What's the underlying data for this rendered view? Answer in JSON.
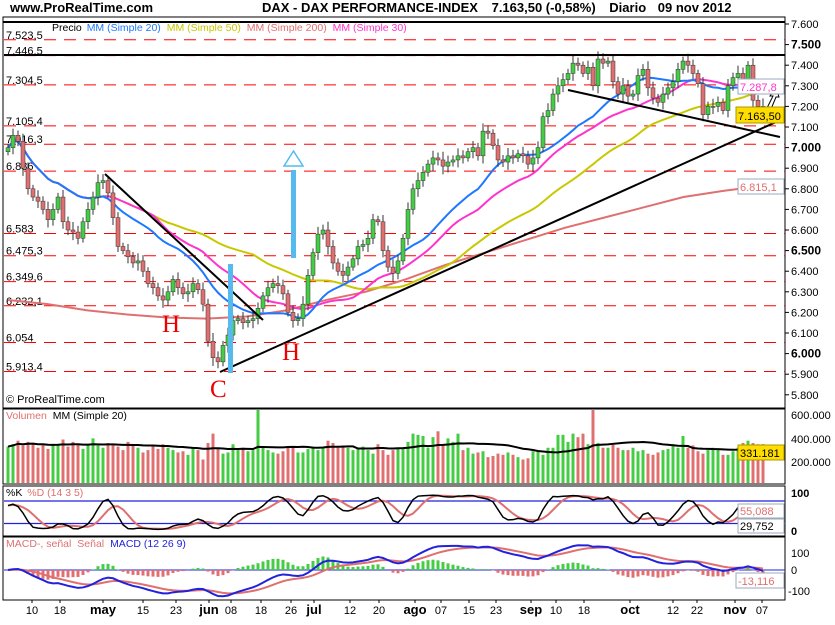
{
  "header": {
    "site": "www.ProRealTime.com",
    "title": "DAX - DAX PERFORMANCE-INDEX",
    "last": "7.163,50 (-0,58%)",
    "period": "Diario",
    "date": "09 nov 2012"
  },
  "legend": {
    "price": "Precio",
    "ma20": "MM (Simple 20)",
    "ma50": "MM (Simple 50)",
    "ma200": "MM (Simple 200)",
    "ma30": "MM (Simple 30)"
  },
  "watermark": "© ProRealTime.com",
  "annotations": {
    "h_left": "H",
    "h_right": "H",
    "c_bottom": "C"
  },
  "colors": {
    "up": "#44cc44",
    "down": "#e07070",
    "ma20": "#1e78ff",
    "ma50": "#c8c800",
    "ma200": "#e07070",
    "ma30": "#ff33cc",
    "level": "#ff0000",
    "arrow": "#55bbee",
    "annotation": "#ee0000",
    "last_tag": "#ffdd00"
  },
  "chart_data": [
    {
      "type": "candlestick",
      "title": "DAX - DAX PERFORMANCE-INDEX",
      "closes": [
        7000,
        7060,
        7030,
        6900,
        6800,
        6760,
        6740,
        6700,
        6650,
        6700,
        6760,
        6640,
        6600,
        6590,
        6560,
        6640,
        6700,
        6760,
        6830,
        6840,
        6780,
        6660,
        6520,
        6500,
        6470,
        6440,
        6450,
        6400,
        6340,
        6320,
        6280,
        6260,
        6300,
        6360,
        6320,
        6290,
        6300,
        6340,
        6310,
        6240,
        6060,
        5980,
        5960,
        6040,
        6090,
        6160,
        6170,
        6150,
        6160,
        6170,
        6220,
        6280,
        6320,
        6340,
        6330,
        6290,
        6200,
        6160,
        6170,
        6240,
        6380,
        6490,
        6580,
        6600,
        6520,
        6440,
        6400,
        6380,
        6420,
        6460,
        6520,
        6530,
        6560,
        6650,
        6640,
        6500,
        6420,
        6390,
        6450,
        6560,
        6700,
        6800,
        6840,
        6880,
        6920,
        6950,
        6940,
        6910,
        6930,
        6940,
        6960,
        6950,
        6980,
        7000,
        6960,
        7080,
        7070,
        7010,
        6940,
        6930,
        6960,
        6950,
        6970,
        6960,
        6920,
        6950,
        7000,
        7150,
        7180,
        7260,
        7300,
        7330,
        7360,
        7410,
        7400,
        7360,
        7390,
        7300,
        7430,
        7410,
        7420,
        7320,
        7260,
        7300,
        7250,
        7260,
        7350,
        7380,
        7290,
        7240,
        7220,
        7260,
        7290,
        7320,
        7380,
        7420,
        7400,
        7360,
        7310,
        7160,
        7200,
        7200,
        7220,
        7180,
        7300,
        7340,
        7360,
        7330,
        7400,
        7230,
        7200,
        7163.5
      ],
      "ma200": [
        6260,
        6240,
        6210,
        6190,
        6175,
        6170,
        6180,
        6210,
        6260,
        6300,
        6360,
        6430,
        6490,
        6550,
        6610,
        6660,
        6710,
        6760,
        6790,
        6815.1
      ],
      "levels": [
        "7.523,5",
        "7.446,5",
        "7.304,5",
        "7.105,4",
        "7.016,3",
        "6.886",
        "6.583",
        "6.475,3",
        "6.349,6",
        "6.232,1",
        "6.054",
        "5.913,4"
      ],
      "resistance": "7.446,5",
      "y_ticks": [
        {
          "label": "7.600",
          "bold": false
        },
        {
          "label": "7.500",
          "bold": true
        },
        {
          "label": "7.400",
          "bold": false
        },
        {
          "label": "7.300",
          "bold": false
        },
        {
          "label": "7.200",
          "bold": false
        },
        {
          "label": "7.100",
          "bold": false
        },
        {
          "label": "7.000",
          "bold": true
        },
        {
          "label": "6.900",
          "bold": false
        },
        {
          "label": "6.800",
          "bold": false
        },
        {
          "label": "6.700",
          "bold": false
        },
        {
          "label": "6.600",
          "bold": false
        },
        {
          "label": "6.500",
          "bold": true
        },
        {
          "label": "6.400",
          "bold": false
        },
        {
          "label": "6.300",
          "bold": false
        },
        {
          "label": "6.200",
          "bold": false
        },
        {
          "label": "6.100",
          "bold": false
        },
        {
          "label": "6.000",
          "bold": true
        },
        {
          "label": "5.900",
          "bold": false
        },
        {
          "label": "5.800",
          "bold": false
        }
      ],
      "price_tags": {
        "ma30": "7.287,8",
        "last": "7.163,50",
        "ma200": "6.815,1"
      },
      "x_ticks": [
        {
          "label": "10",
          "month": false
        },
        {
          "label": "18",
          "month": false
        },
        {
          "label": "may",
          "month": true
        },
        {
          "label": "15",
          "month": false
        },
        {
          "label": "23",
          "month": false
        },
        {
          "label": "jun",
          "month": true
        },
        {
          "label": "08",
          "month": false
        },
        {
          "label": "18",
          "month": false
        },
        {
          "label": "26",
          "month": false
        },
        {
          "label": "jul",
          "month": true
        },
        {
          "label": "12",
          "month": false
        },
        {
          "label": "20",
          "month": false
        },
        {
          "label": "ago",
          "month": true
        },
        {
          "label": "07",
          "month": false
        },
        {
          "label": "15",
          "month": false
        },
        {
          "label": "23",
          "month": false
        },
        {
          "label": "sep",
          "month": true
        },
        {
          "label": "10",
          "month": false
        },
        {
          "label": "18",
          "month": false
        },
        {
          "label": "oct",
          "month": true
        },
        {
          "label": "12",
          "month": false
        },
        {
          "label": "22",
          "month": false
        },
        {
          "label": "nov",
          "month": true
        },
        {
          "label": "07",
          "month": false
        }
      ]
    },
    {
      "type": "bar",
      "title_a": "Volumen",
      "title_b": "MM (Simple 20)",
      "values_thousands": [
        310,
        330,
        360,
        320,
        350,
        340,
        300,
        330,
        290,
        320,
        330,
        370,
        310,
        350,
        330,
        290,
        320,
        380,
        320,
        300,
        340,
        330,
        310,
        280,
        350,
        320,
        300,
        260,
        280,
        310,
        290,
        330,
        300,
        280,
        260,
        270,
        240,
        300,
        280,
        200,
        340,
        420,
        300,
        250,
        260,
        330,
        280,
        300,
        270,
        280,
        660,
        300,
        280,
        260,
        250,
        270,
        300,
        310,
        260,
        260,
        290,
        310,
        280,
        300,
        360,
        340,
        300,
        320,
        300,
        280,
        300,
        310,
        280,
        250,
        330,
        280,
        240,
        280,
        300,
        290,
        350,
        420,
        410,
        400,
        300,
        390,
        440,
        330,
        380,
        350,
        420,
        280,
        300,
        250,
        260,
        270,
        220,
        230,
        250,
        240,
        260,
        240,
        220,
        200,
        210,
        270,
        270,
        240,
        300,
        300,
        410,
        410,
        350,
        420,
        390,
        420,
        330,
        660,
        340,
        300,
        300,
        330,
        300,
        280,
        280,
        300,
        270,
        280,
        250,
        240,
        260,
        280,
        290,
        330,
        300,
        400,
        300,
        320,
        270,
        250,
        280,
        300,
        290,
        240,
        240,
        270,
        300,
        340,
        360,
        340,
        330,
        331
      ],
      "y_ticks": [
        "600.000",
        "400.000",
        "200.000"
      ],
      "tag": "331.181"
    },
    {
      "type": "line",
      "title_k": "%K",
      "title_d": "%D (14 3 5)",
      "y_ticks": [
        "100",
        "0"
      ],
      "bands": [
        80,
        20
      ],
      "tag_d": "55,088",
      "tag_k": "29,752"
    },
    {
      "type": "line",
      "title_a": "MACD-, señal",
      "title_b": "Señal",
      "title_c": "MACD (12 26 9)",
      "y_ticks": [
        "100",
        "0",
        "-100"
      ],
      "tag": "-13,116"
    }
  ]
}
